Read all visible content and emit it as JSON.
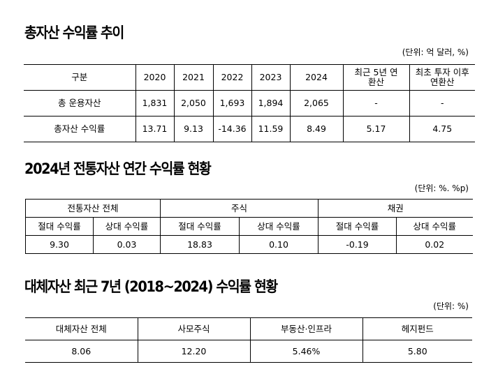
{
  "section1": {
    "title": "총자산 수익률 추이",
    "unit": "(단위: 억 달러, %)",
    "headers": [
      "구분",
      "2020",
      "2021",
      "2022",
      "2023",
      "2024",
      "최근 5년 연환산",
      "최초 투자 이후 연환산"
    ],
    "rows": [
      [
        "총 운용자산",
        "1,831",
        "2,050",
        "1,693",
        "1,894",
        "2,065",
        "-",
        "-"
      ],
      [
        "총자산 수익률",
        "13.71",
        "9.13",
        "-14.36",
        "11.59",
        "8.49",
        "5.17",
        "4.75"
      ]
    ]
  },
  "section2": {
    "title": "2024년 전통자산 연간 수익률 현황",
    "unit": "(단위: %. %p)",
    "groups": [
      "전통자산 전체",
      "주식",
      "채권"
    ],
    "subheaders": [
      "절대 수익률",
      "상대 수익률",
      "절대 수익률",
      "상대 수익률",
      "절대 수익률",
      "상대 수익률"
    ],
    "values": [
      "9.30",
      "0.03",
      "18.83",
      "0.10",
      "-0.19",
      "0.02"
    ]
  },
  "section3": {
    "title": "대체자산 최근 7년 (2018~2024) 수익률 현황",
    "unit": "(단위: %)",
    "headers": [
      "대체자산 전체",
      "사모주식",
      "부동산·인프라",
      "헤지펀드"
    ],
    "values": [
      "8.06",
      "12.20",
      "5.46%",
      "5.80"
    ]
  }
}
